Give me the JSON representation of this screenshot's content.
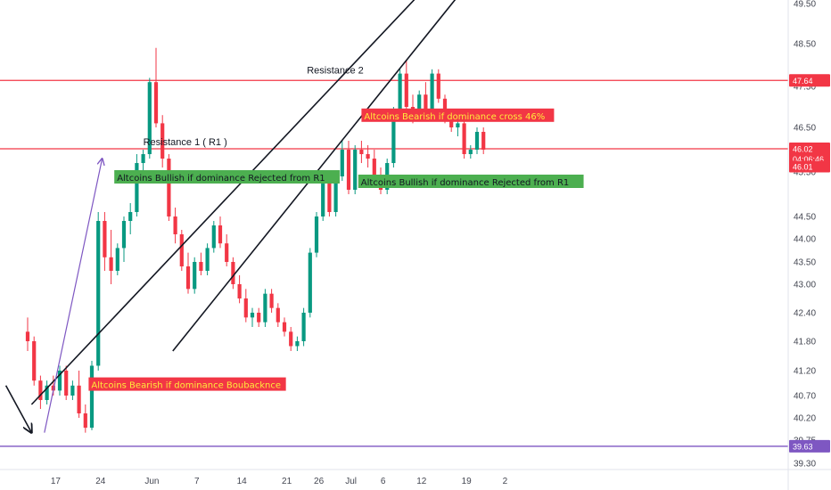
{
  "chart_data": {
    "type": "candlestick",
    "ylim": [
      39.2,
      49.6
    ],
    "y_ticks": [
      "49.50",
      "48.50",
      "47.50",
      "46.50",
      "45.50",
      "44.50",
      "44.00",
      "43.50",
      "43.00",
      "42.40",
      "41.80",
      "41.20",
      "40.70",
      "40.20",
      "39.75",
      "39.30"
    ],
    "y_tick_values": [
      49.5,
      48.5,
      47.5,
      46.5,
      45.5,
      44.5,
      44.0,
      43.5,
      43.0,
      42.4,
      41.8,
      41.2,
      40.7,
      40.2,
      39.75,
      39.3
    ],
    "x_ticks": [
      "17",
      "24",
      "Jun",
      "7",
      "14",
      "21",
      "26",
      "Jul",
      "6",
      "12",
      "19",
      "2"
    ],
    "x_tick_days": [
      2,
      9,
      17,
      24,
      31,
      38,
      43,
      48,
      53,
      59,
      66,
      72
    ],
    "horizontal_levels": [
      {
        "price": 47.64,
        "label": "47.64",
        "color": "#f23645"
      },
      {
        "price": 46.02,
        "label": "46.02",
        "color": "#f23645"
      },
      {
        "price": 39.63,
        "label": "39.63",
        "color": "#7e57c2"
      }
    ],
    "current_price": {
      "price": "46.02",
      "countdown": "04:06:46"
    },
    "secondary_level": "46.01",
    "candles_ohlc": [
      [
        42.0,
        42.3,
        41.6,
        41.8
      ],
      [
        41.8,
        41.9,
        40.9,
        41.0
      ],
      [
        41.0,
        41.1,
        40.4,
        40.6
      ],
      [
        40.6,
        41.0,
        40.5,
        40.9
      ],
      [
        40.9,
        41.1,
        40.7,
        40.8
      ],
      [
        40.8,
        41.3,
        40.7,
        41.2
      ],
      [
        41.2,
        41.3,
        40.6,
        40.7
      ],
      [
        40.7,
        41.0,
        40.6,
        40.9
      ],
      [
        40.9,
        41.2,
        40.2,
        40.3
      ],
      [
        40.3,
        40.5,
        39.9,
        40.0
      ],
      [
        40.0,
        41.4,
        39.95,
        41.3
      ],
      [
        41.3,
        44.6,
        41.2,
        44.4
      ],
      [
        44.4,
        44.6,
        43.3,
        43.6
      ],
      [
        43.6,
        44.2,
        43.0,
        43.3
      ],
      [
        43.3,
        43.9,
        43.2,
        43.8
      ],
      [
        43.8,
        44.5,
        43.5,
        44.4
      ],
      [
        44.4,
        44.8,
        44.1,
        44.6
      ],
      [
        44.6,
        45.9,
        44.5,
        45.7
      ],
      [
        45.7,
        46.0,
        45.4,
        45.9
      ],
      [
        45.9,
        47.7,
        45.8,
        47.6
      ],
      [
        47.6,
        48.4,
        46.5,
        46.6
      ],
      [
        46.6,
        46.8,
        45.6,
        45.8
      ],
      [
        45.8,
        45.9,
        44.4,
        44.5
      ],
      [
        44.5,
        44.7,
        43.9,
        44.1
      ],
      [
        44.1,
        44.2,
        43.3,
        43.4
      ],
      [
        43.4,
        43.7,
        42.8,
        42.9
      ],
      [
        42.9,
        43.6,
        42.8,
        43.5
      ],
      [
        43.5,
        43.7,
        43.2,
        43.3
      ],
      [
        43.3,
        43.9,
        43.2,
        43.8
      ],
      [
        43.8,
        44.4,
        43.7,
        44.3
      ],
      [
        44.3,
        44.5,
        43.8,
        43.9
      ],
      [
        43.9,
        44.1,
        43.4,
        43.5
      ],
      [
        43.5,
        43.6,
        42.9,
        43.0
      ],
      [
        43.0,
        43.2,
        42.6,
        42.7
      ],
      [
        42.7,
        42.9,
        42.2,
        42.3
      ],
      [
        42.3,
        42.5,
        42.1,
        42.4
      ],
      [
        42.4,
        42.5,
        42.1,
        42.2
      ],
      [
        42.2,
        42.9,
        42.1,
        42.8
      ],
      [
        42.8,
        42.9,
        42.4,
        42.5
      ],
      [
        42.5,
        42.6,
        42.1,
        42.2
      ],
      [
        42.2,
        42.3,
        41.9,
        42.0
      ],
      [
        42.0,
        42.1,
        41.6,
        41.7
      ],
      [
        41.7,
        41.9,
        41.6,
        41.8
      ],
      [
        41.8,
        42.5,
        41.7,
        42.4
      ],
      [
        42.4,
        43.8,
        42.3,
        43.7
      ],
      [
        43.7,
        44.6,
        43.6,
        44.5
      ],
      [
        44.5,
        45.4,
        44.4,
        45.3
      ],
      [
        45.3,
        45.4,
        44.5,
        44.6
      ],
      [
        44.6,
        45.5,
        44.5,
        45.4
      ],
      [
        45.4,
        46.2,
        45.3,
        46.0
      ],
      [
        46.0,
        46.2,
        45.0,
        45.1
      ],
      [
        45.1,
        46.1,
        45.0,
        46.0
      ],
      [
        46.0,
        46.2,
        45.7,
        45.9
      ],
      [
        45.9,
        46.1,
        45.6,
        45.8
      ],
      [
        45.8,
        46.0,
        45.3,
        45.4
      ],
      [
        45.4,
        45.6,
        45.0,
        45.1
      ],
      [
        45.1,
        45.8,
        45.0,
        45.7
      ],
      [
        45.7,
        47.0,
        45.6,
        46.9
      ],
      [
        46.9,
        47.9,
        46.8,
        47.8
      ],
      [
        47.8,
        48.1,
        46.9,
        47.0
      ],
      [
        47.0,
        47.3,
        46.6,
        46.8
      ],
      [
        46.8,
        47.4,
        46.7,
        47.3
      ],
      [
        47.3,
        47.6,
        46.8,
        46.9
      ],
      [
        46.9,
        47.9,
        46.8,
        47.8
      ],
      [
        47.8,
        47.9,
        47.1,
        47.2
      ],
      [
        47.2,
        47.3,
        46.6,
        46.7
      ],
      [
        46.7,
        46.9,
        46.4,
        46.5
      ],
      [
        46.5,
        46.8,
        46.3,
        46.6
      ],
      [
        46.6,
        46.7,
        45.8,
        45.9
      ],
      [
        45.9,
        46.1,
        45.8,
        46.0
      ],
      [
        46.0,
        46.5,
        45.9,
        46.4
      ],
      [
        46.4,
        46.5,
        45.9,
        46.0
      ]
    ],
    "trend_lines": [
      {
        "from": [
          2,
          40.5
        ],
        "to": [
          64,
          50.0
        ],
        "color": "#131722"
      },
      {
        "from": [
          24,
          41.6
        ],
        "to": [
          70,
          50.0
        ],
        "color": "#131722"
      },
      {
        "from": [
          -2,
          40.9
        ],
        "to": [
          2,
          39.9
        ],
        "color": "#131722",
        "arrow": true
      },
      {
        "from": [
          4,
          39.9
        ],
        "to": [
          13,
          45.8
        ],
        "color": "#7e57c2",
        "arrow": true
      }
    ],
    "line_labels": [
      {
        "text": "Resistance 1 ( R1 )",
        "x": 18,
        "y": 46.1
      },
      {
        "text": "Resistance 2",
        "x": 43.5,
        "y": 47.8
      }
    ],
    "annotations": [
      {
        "text": "Altcoins  Bullish if dominance Rejected from R1",
        "x": 13.5,
        "y": 45.3,
        "bg": "#4caf50",
        "fg": "#131722"
      },
      {
        "text": "Altcoins  Bullish if dominance Rejected from R1",
        "x": 51.5,
        "y": 45.2,
        "bg": "#4caf50",
        "fg": "#131722"
      },
      {
        "text": "Altcoins  Bearish if dominance cross 46%",
        "x": 52.0,
        "y": 46.7,
        "bg": "#f23645",
        "fg": "#ffeb3b"
      },
      {
        "text": "Altcoins  Bearish if dominance Boubacknce",
        "x": 9.5,
        "y": 40.85,
        "bg": "#f23645",
        "fg": "#ffeb3b"
      }
    ],
    "colors": {
      "up": "#089981",
      "down": "#f23645"
    }
  }
}
